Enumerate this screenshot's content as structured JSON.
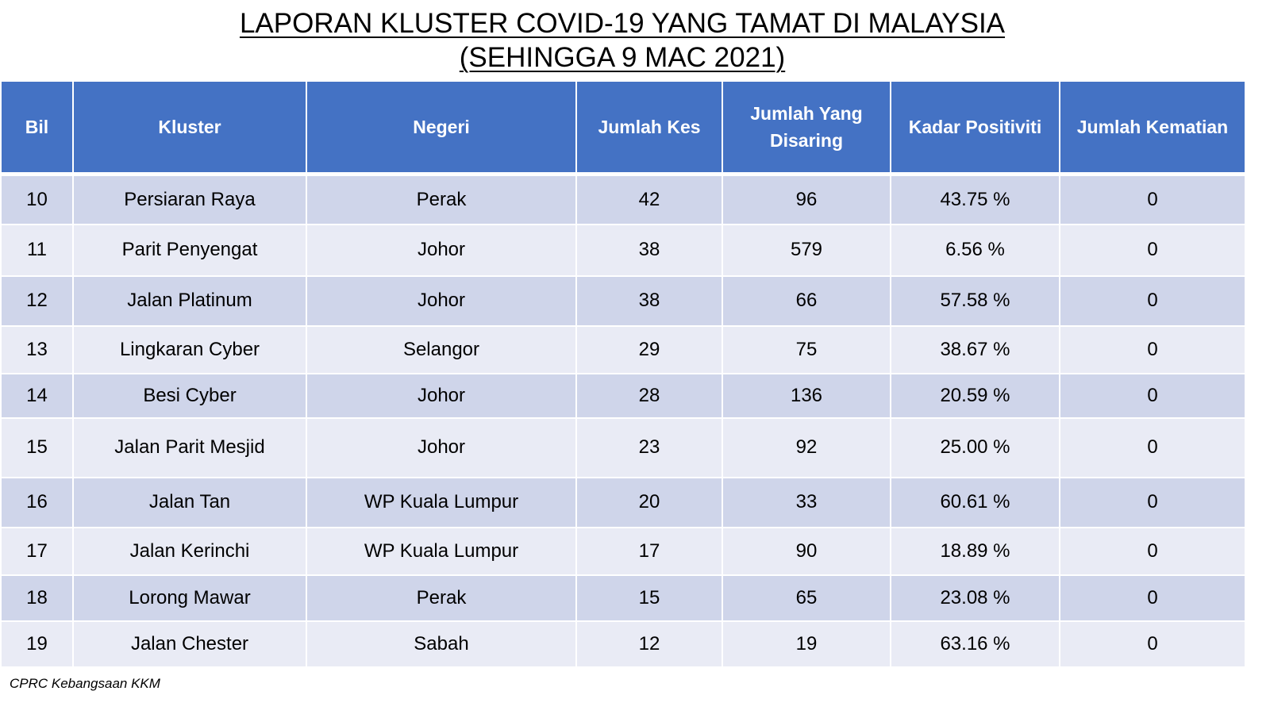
{
  "title": {
    "line1": "LAPORAN KLUSTER COVID-19 YANG TAMAT DI MALAYSIA",
    "line2": "(SEHINGGA  9 MAC 2021)"
  },
  "table": {
    "headers": {
      "bil": "Bil",
      "kluster": "Kluster",
      "negeri": "Negeri",
      "jumlah_kes": "Jumlah Kes",
      "jumlah_disaring": "Jumlah Yang Disaring",
      "kadar_positiviti": "Kadar Positiviti",
      "jumlah_kematian": "Jumlah Kematian"
    },
    "rows": [
      {
        "bil": "10",
        "kluster": "Persiaran Raya",
        "negeri": "Perak",
        "kes": "42",
        "disaring": "96",
        "positiviti": "43.75 %",
        "kematian": "0"
      },
      {
        "bil": "11",
        "kluster": "Parit Penyengat",
        "negeri": "Johor",
        "kes": "38",
        "disaring": "579",
        "positiviti": "6.56 %",
        "kematian": "0"
      },
      {
        "bil": "12",
        "kluster": "Jalan Platinum",
        "negeri": "Johor",
        "kes": "38",
        "disaring": "66",
        "positiviti": "57.58 %",
        "kematian": "0"
      },
      {
        "bil": "13",
        "kluster": "Lingkaran Cyber",
        "negeri": "Selangor",
        "kes": "29",
        "disaring": "75",
        "positiviti": "38.67 %",
        "kematian": "0"
      },
      {
        "bil": "14",
        "kluster": "Besi Cyber",
        "negeri": "Johor",
        "kes": "28",
        "disaring": "136",
        "positiviti": "20.59 %",
        "kematian": "0"
      },
      {
        "bil": "15",
        "kluster": "Jalan Parit Mesjid",
        "negeri": "Johor",
        "kes": "23",
        "disaring": "92",
        "positiviti": "25.00 %",
        "kematian": "0"
      },
      {
        "bil": "16",
        "kluster": "Jalan Tan",
        "negeri": "WP Kuala Lumpur",
        "kes": "20",
        "disaring": "33",
        "positiviti": "60.61 %",
        "kematian": "0"
      },
      {
        "bil": "17",
        "kluster": "Jalan Kerinchi",
        "negeri": "WP Kuala Lumpur",
        "kes": "17",
        "disaring": "90",
        "positiviti": "18.89 %",
        "kematian": "0"
      },
      {
        "bil": "18",
        "kluster": "Lorong Mawar",
        "negeri": "Perak",
        "kes": "15",
        "disaring": "65",
        "positiviti": "23.08 %",
        "kematian": "0"
      },
      {
        "bil": "19",
        "kluster": "Jalan Chester",
        "negeri": "Sabah",
        "kes": "12",
        "disaring": "19",
        "positiviti": "63.16 %",
        "kematian": "0"
      }
    ]
  },
  "footer": {
    "source": "CPRC Kebangsaan KKM"
  },
  "colors": {
    "header_bg": "#4472c4",
    "row_dark": "#cfd5ea",
    "row_light": "#e9ebf5"
  }
}
